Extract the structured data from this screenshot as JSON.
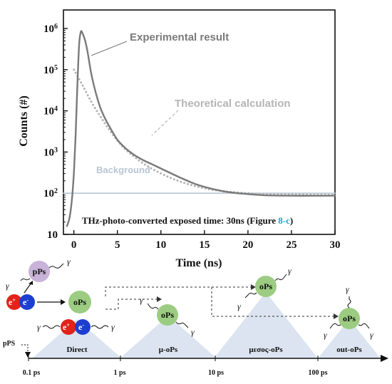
{
  "chart_data": {
    "type": "line",
    "xlabel": "Time (ns)",
    "ylabel": "Counts (#)",
    "xlim": [
      -1.2,
      30
    ],
    "ylim_log": [
      1,
      6.45
    ],
    "yscale": "log",
    "x_ticks": [
      "0",
      "5",
      "10",
      "15",
      "20",
      "25",
      "30"
    ],
    "y_ticks": [
      {
        "base": "10",
        "exp": "6"
      },
      {
        "base": "10",
        "exp": "5"
      },
      {
        "base": "10",
        "exp": "4"
      },
      {
        "base": "10",
        "exp": "3"
      },
      {
        "base": "10",
        "exp": "2"
      },
      {
        "base": "10",
        "exp": ""
      }
    ],
    "grid": false,
    "series": [
      {
        "name": "Experimental result",
        "color": "#7a7a7a",
        "style": "solid",
        "x": [
          -0.8,
          -0.5,
          -0.2,
          0.0,
          0.2,
          0.4,
          0.6,
          0.8,
          1.0,
          1.3,
          1.6,
          2.0,
          2.5,
          3.0,
          3.5,
          4.0,
          5.0,
          6.0,
          7.0,
          8.0,
          9.0,
          10.0,
          12.0,
          14.0,
          16.0,
          18.0,
          20.0,
          22.0,
          25.0,
          28.0,
          30.0
        ],
        "y": [
          1.2,
          1.4,
          1.9,
          2.5,
          3.4,
          4.6,
          5.6,
          5.92,
          5.88,
          5.7,
          5.4,
          4.9,
          4.45,
          4.1,
          3.85,
          3.65,
          3.3,
          3.08,
          2.92,
          2.8,
          2.7,
          2.6,
          2.4,
          2.22,
          2.1,
          2.02,
          1.98,
          1.95,
          1.94,
          1.94,
          1.94
        ]
      },
      {
        "name": "Theoretical calculation",
        "color": "#b5b5b5",
        "style": "dotted",
        "x": [
          0.0,
          1.0,
          2.0,
          3.0,
          4.0,
          5.0,
          6.0,
          8.0,
          10.0,
          12.0,
          14.0,
          16.0,
          18.0,
          20.0,
          22.0,
          25.0,
          28.0,
          30.0
        ],
        "y": [
          5.0,
          4.62,
          4.22,
          3.88,
          3.56,
          3.28,
          3.05,
          2.72,
          2.48,
          2.3,
          2.17,
          2.08,
          2.03,
          2.0,
          1.98,
          1.97,
          1.96,
          1.96
        ]
      },
      {
        "name": "Background",
        "color": "#b9c6d6",
        "style": "solid",
        "x": [
          -1.2,
          30.0
        ],
        "y": [
          2.0,
          2.0
        ]
      }
    ],
    "annotations": {
      "experimental": "Experimental result",
      "theoretical": "Theoretical calculation",
      "background": "Background",
      "note_prefix": "THz-photo-converted exposed time: 30ns (Figure ",
      "note_ref": "8-c",
      "note_suffix": ")"
    }
  },
  "diagram": {
    "balls": {
      "pps": "pPs",
      "ops_center": "oPs",
      "ops_mu": "oPs",
      "ops_mesos": "oPs",
      "ops_out": "oPs",
      "electron": "e",
      "positron": "e"
    },
    "charges": {
      "plus": "+",
      "minus": "-"
    },
    "gamma": "γ",
    "stages": [
      "Direct",
      "μ-oPs",
      "μεσος-oPs",
      "out-oPs"
    ],
    "timeline_labels": [
      "0.1 ps",
      "1 ps",
      "10 ps",
      "100 ps"
    ],
    "pps_axis_label": "pPS",
    "colors": {
      "pps_ball": "#c9b3d8",
      "ops_ball": "#9ccc82",
      "electron_ball": "#1d3fd1",
      "positron_ball": "#e2231a",
      "triangle": "#dbe4f0"
    }
  }
}
